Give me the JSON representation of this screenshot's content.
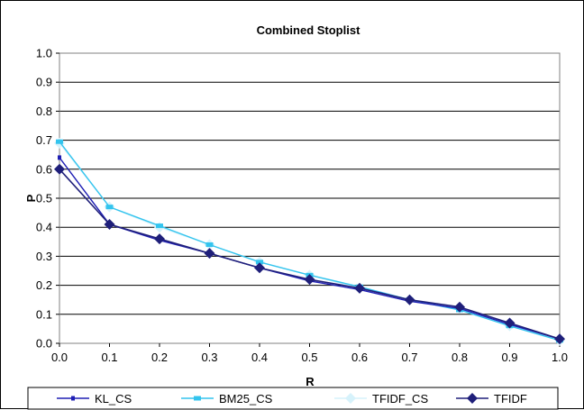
{
  "chart_data": {
    "type": "line",
    "title": "Combined Stoplist",
    "xlabel": "R",
    "ylabel": "P",
    "xlim": [
      0,
      1
    ],
    "ylim": [
      0,
      1
    ],
    "x_ticks": [
      "0.0",
      "0.1",
      "0.2",
      "0.3",
      "0.4",
      "0.5",
      "0.6",
      "0.7",
      "0.8",
      "0.9",
      "1.0"
    ],
    "y_ticks": [
      "0.0",
      "0.1",
      "0.2",
      "0.3",
      "0.4",
      "0.5",
      "0.6",
      "0.7",
      "0.8",
      "0.9",
      "1.0"
    ],
    "grid": "horizontal",
    "legend_position": "bottom",
    "x": [
      0.0,
      0.1,
      0.2,
      0.3,
      0.4,
      0.5,
      0.6,
      0.7,
      0.8,
      0.9,
      1.0
    ],
    "series": [
      {
        "name": "KL_CS",
        "color": "#1f1fb4",
        "marker": "dash",
        "values": [
          0.64,
          0.41,
          0.355,
          0.31,
          0.26,
          0.215,
          0.185,
          0.145,
          0.12,
          0.065,
          0.015
        ]
      },
      {
        "name": "BM25_CS",
        "color": "#33c4ee",
        "marker": "square",
        "values": [
          0.695,
          0.47,
          0.405,
          0.34,
          0.28,
          0.235,
          0.195,
          0.15,
          0.115,
          0.06,
          0.01
        ]
      },
      {
        "name": "TFIDF_CS",
        "color": "#d6f2fb",
        "marker": "diamond",
        "values": [
          0.69,
          0.47,
          0.4,
          0.34,
          0.28,
          0.235,
          0.19,
          0.15,
          0.12,
          0.06,
          0.01
        ]
      },
      {
        "name": "TFIDF",
        "color": "#1f1f7a",
        "marker": "diamond",
        "values": [
          0.6,
          0.41,
          0.36,
          0.31,
          0.26,
          0.22,
          0.19,
          0.15,
          0.125,
          0.07,
          0.015
        ]
      }
    ]
  }
}
